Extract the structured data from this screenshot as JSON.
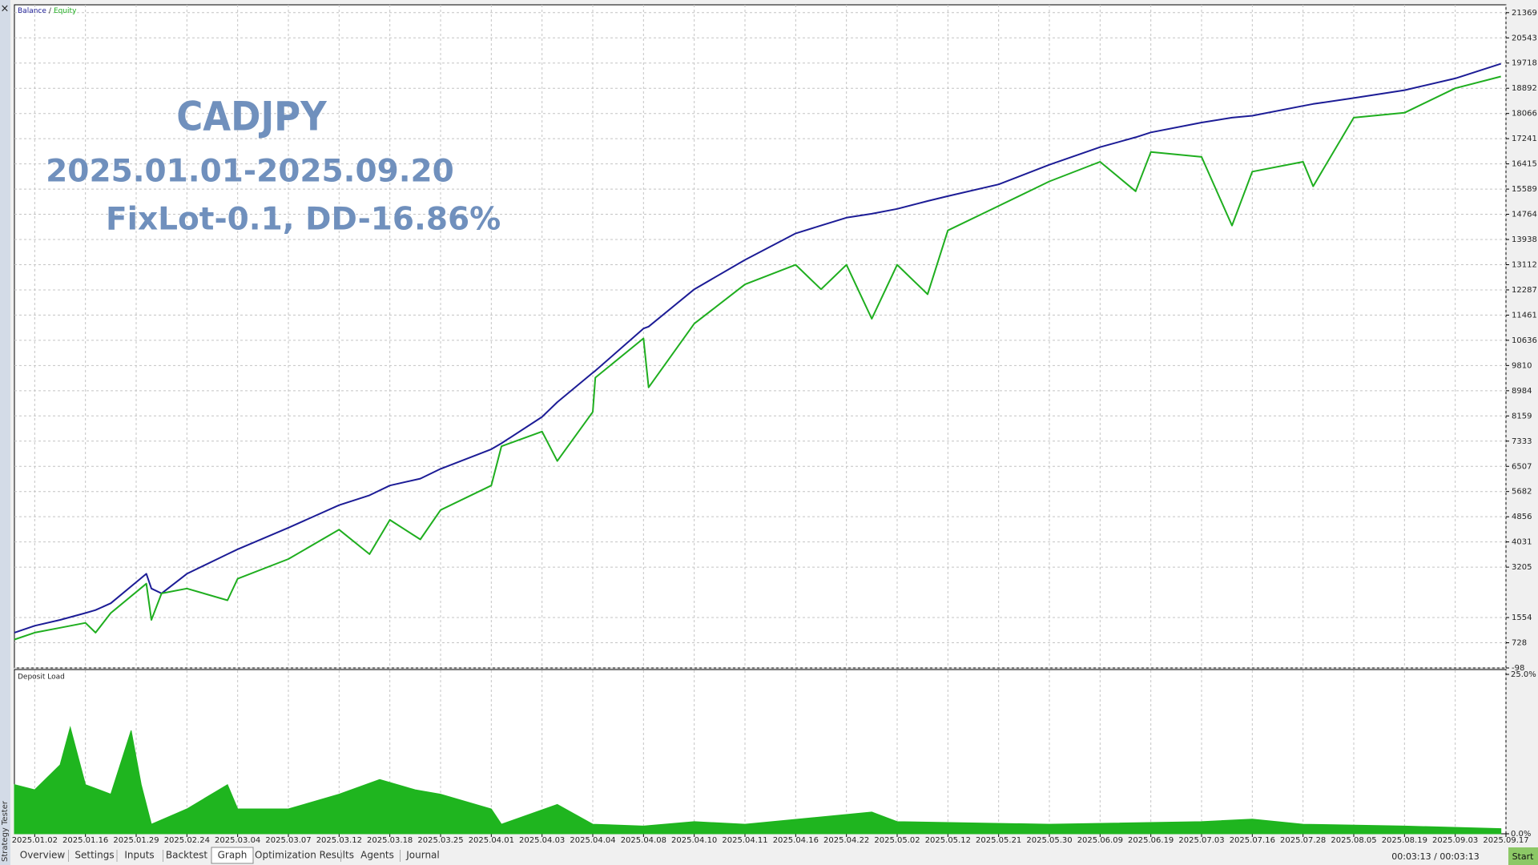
{
  "chart_data": [
    {
      "type": "line",
      "legend": "upper left",
      "legend_separator": "/",
      "grid": true,
      "annotations": [
        "CADJPY",
        "2025.01.01-2025.09.20",
        "FixLot-0.1, DD-16.86%"
      ],
      "x": [
        -0.4,
        0,
        0.5,
        1,
        1.2,
        1.5,
        2.2,
        2.3,
        2.5,
        3,
        3.8,
        4,
        5,
        6,
        6.6,
        7,
        7.6,
        8,
        9,
        9.2,
        10,
        10.3,
        11,
        11.05,
        12,
        12.1,
        13,
        14,
        15,
        15.5,
        16,
        16.5,
        17,
        17.6,
        18,
        19,
        20,
        21,
        21.7,
        22,
        23,
        23.6,
        24,
        25,
        25.2,
        26,
        27,
        28,
        28.9
      ],
      "series": [
        {
          "name": "Balance",
          "color": "#1c1c96",
          "values": [
            1059,
            1284,
            1477,
            1701,
            1798,
            2023,
            2987,
            2505,
            2344,
            2987,
            3630,
            3790,
            4497,
            5236,
            5558,
            5879,
            6104,
            6425,
            7068,
            7261,
            8128,
            8610,
            9574,
            9639,
            11020,
            11085,
            12306,
            13270,
            14137,
            14394,
            14652,
            14780,
            14941,
            15198,
            15358,
            15744,
            16387,
            16965,
            17286,
            17447,
            17769,
            17929,
            17993,
            18315,
            18379,
            18572,
            18829,
            19215,
            19696
          ]
        },
        {
          "name": "Equity",
          "color": "#1fae1f",
          "values": [
            834,
            1059,
            1219,
            1380,
            1059,
            1701,
            2666,
            1477,
            2344,
            2505,
            2119,
            2826,
            3469,
            4433,
            3630,
            4754,
            4112,
            5076,
            5879,
            7164,
            7646,
            6682,
            8289,
            9414,
            10699,
            9092,
            11181,
            12466,
            13109,
            12306,
            13109,
            11342,
            13109,
            12145,
            14234,
            15037,
            15840,
            16483,
            15519,
            16804,
            16644,
            14394,
            16162,
            16483,
            15680,
            17929,
            18090,
            18893,
            19279
          ]
        }
      ],
      "xlim": [
        -0.4,
        29
      ],
      "xticks": [
        {
          "value": 0,
          "label": "2025.01.02"
        },
        {
          "value": 1,
          "label": "2025.01.16"
        },
        {
          "value": 2,
          "label": "2025.01.29"
        },
        {
          "value": 3,
          "label": "2025.02.24"
        },
        {
          "value": 4,
          "label": "2025.03.04"
        },
        {
          "value": 5,
          "label": "2025.03.07"
        },
        {
          "value": 6,
          "label": "2025.03.12"
        },
        {
          "value": 7,
          "label": "2025.03.18"
        },
        {
          "value": 8,
          "label": "2025.03.25"
        },
        {
          "value": 9,
          "label": "2025.04.01"
        },
        {
          "value": 10,
          "label": "2025.04.03"
        },
        {
          "value": 11,
          "label": "2025.04.04"
        },
        {
          "value": 12,
          "label": "2025.04.08"
        },
        {
          "value": 13,
          "label": "2025.04.10"
        },
        {
          "value": 14,
          "label": "2025.04.11"
        },
        {
          "value": 15,
          "label": "2025.04.16"
        },
        {
          "value": 16,
          "label": "2025.04.22"
        },
        {
          "value": 17,
          "label": "2025.05.02"
        },
        {
          "value": 18,
          "label": "2025.05.12"
        },
        {
          "value": 19,
          "label": "2025.05.21"
        },
        {
          "value": 20,
          "label": "2025.05.30"
        },
        {
          "value": 21,
          "label": "2025.06.09"
        },
        {
          "value": 22,
          "label": "2025.06.19"
        },
        {
          "value": 23,
          "label": "2025.07.03"
        },
        {
          "value": 24,
          "label": "2025.07.16"
        },
        {
          "value": 25,
          "label": "2025.07.28"
        },
        {
          "value": 26,
          "label": "2025.08.05"
        },
        {
          "value": 27,
          "label": "2025.08.19"
        },
        {
          "value": 28,
          "label": "2025.09.03"
        },
        {
          "value": 29,
          "label": "2025.09.17"
        }
      ],
      "ylim": [
        -98,
        21626
      ],
      "yticks": [
        21369,
        20543,
        19718,
        18892,
        18066,
        17241,
        16415,
        15589,
        14764,
        13938,
        13112,
        12287,
        11461,
        10636,
        9810,
        8984,
        8159,
        7333,
        6507,
        5682,
        4856,
        4031,
        3205,
        1554,
        728,
        -98
      ]
    },
    {
      "type": "area",
      "title": "Deposit Load",
      "color": "#1fb51f",
      "x": [
        -0.4,
        0,
        0.5,
        0.7,
        1,
        1.5,
        1.9,
        2.1,
        2.3,
        3,
        3.8,
        4,
        5,
        6,
        6.8,
        7.5,
        8,
        9,
        9.2,
        10.3,
        11,
        12,
        13,
        14,
        16.5,
        17,
        20,
        23,
        24,
        25,
        27,
        28.9
      ],
      "values": [
        7.7,
        6.9,
        10.8,
        16.7,
        7.7,
        6.2,
        16.2,
        7.7,
        1.5,
        3.9,
        7.7,
        3.9,
        3.9,
        6.2,
        8.5,
        6.9,
        6.2,
        3.9,
        1.5,
        4.6,
        1.5,
        1.2,
        1.9,
        1.5,
        3.4,
        1.9,
        1.5,
        1.9,
        2.3,
        1.5,
        1.2,
        0.8
      ],
      "xlim": [
        -0.4,
        29
      ],
      "ylim": [
        0,
        25
      ],
      "yticks": [
        {
          "value": 25,
          "label": "25.0%"
        },
        {
          "value": 0,
          "label": "0.0%"
        }
      ]
    }
  ],
  "sidebar": {
    "title": "Strategy Tester",
    "close": "×"
  },
  "tabs": {
    "items": [
      "Overview",
      "Settings",
      "Inputs",
      "Backtest",
      "Graph",
      "Optimization Results",
      "Agents",
      "Journal"
    ],
    "active": 4
  },
  "status": {
    "time": "00:03:13 / 00:03:13",
    "button": "Start"
  }
}
